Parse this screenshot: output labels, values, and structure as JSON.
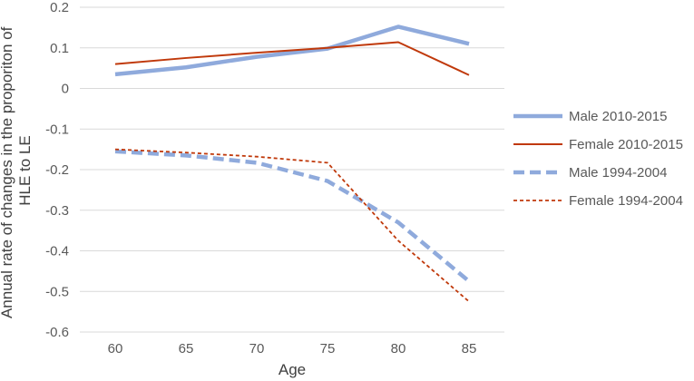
{
  "chart_data": {
    "type": "line",
    "title": "",
    "xlabel": "Age",
    "ylabel_lines": [
      "Annual rate of changes in the proporiton of",
      "HLE to LE"
    ],
    "categories": [
      "60",
      "65",
      "70",
      "75",
      "80",
      "85"
    ],
    "y_ticks": [
      "0.2",
      "0.1",
      "0",
      "-0.1",
      "-0.2",
      "-0.3",
      "-0.4",
      "-0.5",
      "-0.6"
    ],
    "y_tick_values": [
      0.2,
      0.1,
      0,
      -0.1,
      -0.2,
      -0.3,
      -0.4,
      -0.5,
      -0.6
    ],
    "ylim": [
      -0.6,
      0.2
    ],
    "grid": "horizontal",
    "legend_position": "right",
    "series": [
      {
        "name": "Male 2010-2015",
        "values": [
          0.035,
          0.052,
          0.078,
          0.098,
          0.152,
          0.11
        ],
        "color": "#8faadc",
        "style": "solid-thick"
      },
      {
        "name": "Female 2010-2015",
        "values": [
          0.06,
          0.075,
          0.088,
          0.1,
          0.114,
          0.033
        ],
        "color": "#c0390b",
        "style": "solid-thin"
      },
      {
        "name": "Male 1994-2004",
        "values": [
          -0.155,
          -0.165,
          -0.183,
          -0.228,
          -0.33,
          -0.475
        ],
        "color": "#8faadc",
        "style": "dashed-thick"
      },
      {
        "name": "Female 1994-2004",
        "values": [
          -0.15,
          -0.158,
          -0.168,
          -0.183,
          -0.375,
          -0.525
        ],
        "color": "#c0390b",
        "style": "dashed-thin"
      }
    ]
  }
}
